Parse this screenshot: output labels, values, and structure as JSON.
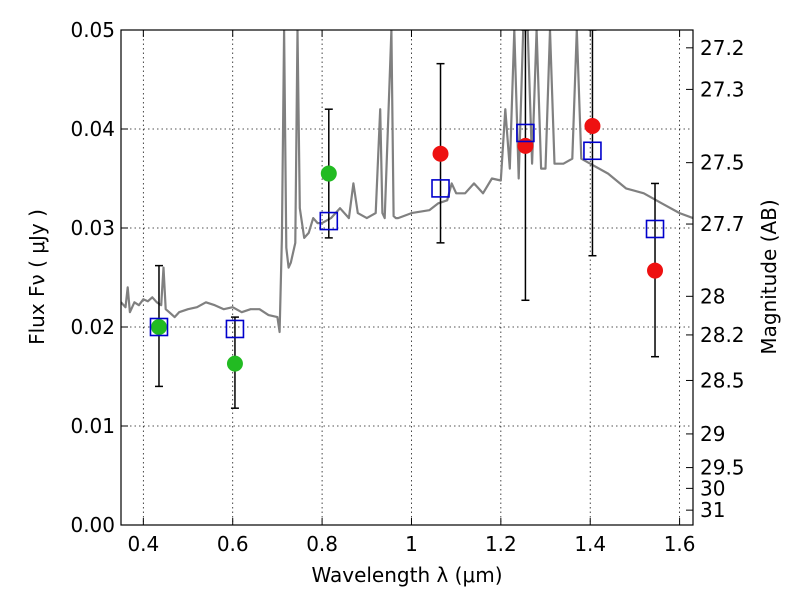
{
  "chart_data": {
    "type": "scatter",
    "title": "",
    "xlabel": "Wavelength  λ (μm)",
    "ylabel": "Flux  Fν  ( μJy )",
    "ylabel_right": "Magnitude (AB)",
    "xlim": [
      0.35,
      1.63
    ],
    "ylim": [
      0.0,
      0.05
    ],
    "grid": true,
    "x_ticks": [
      0.4,
      0.6,
      0.8,
      1.0,
      1.2,
      1.4,
      1.6
    ],
    "x_tick_labels": [
      "0.4",
      "0.6",
      "0.8",
      "1",
      "1.2",
      "1.4",
      "1.6"
    ],
    "y_ticks": [
      0.0,
      0.01,
      0.02,
      0.03,
      0.04,
      0.05
    ],
    "y_tick_labels": [
      "0.00",
      "0.01",
      "0.02",
      "0.03",
      "0.04",
      "0.05"
    ],
    "right_ticks": [
      {
        "label": "27.2",
        "flux": 0.0482
      },
      {
        "label": "27.3",
        "flux": 0.044
      },
      {
        "label": "27.5",
        "flux": 0.0366
      },
      {
        "label": "27.7",
        "flux": 0.0304
      },
      {
        "label": "28",
        "flux": 0.0231
      },
      {
        "label": "28.2",
        "flux": 0.0192
      },
      {
        "label": "28.5",
        "flux": 0.0146
      },
      {
        "label": "29",
        "flux": 0.0092
      },
      {
        "label": "29.5",
        "flux": 0.0058
      },
      {
        "label": "30",
        "flux": 0.0037
      },
      {
        "label": "31",
        "flux": 0.0015
      }
    ],
    "series": [
      {
        "kind": "line",
        "color": "#808080",
        "x": [
          0.35,
          0.36,
          0.365,
          0.37,
          0.38,
          0.39,
          0.4,
          0.41,
          0.42,
          0.43,
          0.44,
          0.445,
          0.45,
          0.46,
          0.47,
          0.48,
          0.5,
          0.52,
          0.54,
          0.56,
          0.58,
          0.6,
          0.62,
          0.64,
          0.66,
          0.68,
          0.7,
          0.705,
          0.71,
          0.715,
          0.72,
          0.725,
          0.73,
          0.74,
          0.745,
          0.75,
          0.76,
          0.77,
          0.78,
          0.79,
          0.8,
          0.82,
          0.84,
          0.86,
          0.87,
          0.88,
          0.9,
          0.92,
          0.93,
          0.935,
          0.94,
          0.955,
          0.96,
          0.965,
          0.97,
          1.0,
          1.04,
          1.06,
          1.08,
          1.09,
          1.1,
          1.12,
          1.14,
          1.16,
          1.18,
          1.2,
          1.21,
          1.22,
          1.23,
          1.24,
          1.25,
          1.26,
          1.27,
          1.28,
          1.29,
          1.3,
          1.31,
          1.32,
          1.34,
          1.36,
          1.37,
          1.38,
          1.4,
          1.44,
          1.48,
          1.52,
          1.56,
          1.6,
          1.63
        ],
        "y": [
          0.0225,
          0.022,
          0.024,
          0.0215,
          0.0225,
          0.0222,
          0.0228,
          0.0226,
          0.023,
          0.0225,
          0.0222,
          0.026,
          0.0218,
          0.0214,
          0.021,
          0.0215,
          0.0218,
          0.022,
          0.0225,
          0.0222,
          0.0218,
          0.022,
          0.0215,
          0.0218,
          0.0218,
          0.0212,
          0.021,
          0.0195,
          0.029,
          0.05,
          0.028,
          0.026,
          0.0265,
          0.0285,
          0.05,
          0.032,
          0.029,
          0.0295,
          0.031,
          0.0305,
          0.0305,
          0.031,
          0.032,
          0.031,
          0.0345,
          0.0315,
          0.031,
          0.0315,
          0.042,
          0.0315,
          0.031,
          0.05,
          0.0312,
          0.031,
          0.031,
          0.0315,
          0.0318,
          0.0325,
          0.0328,
          0.0345,
          0.0335,
          0.0335,
          0.0345,
          0.0335,
          0.035,
          0.0348,
          0.042,
          0.036,
          0.05,
          0.035,
          0.05,
          0.05,
          0.0365,
          0.05,
          0.036,
          0.036,
          0.05,
          0.0365,
          0.0365,
          0.037,
          0.05,
          0.037,
          0.0365,
          0.0355,
          0.034,
          0.0335,
          0.0325,
          0.0315,
          0.031
        ]
      },
      {
        "kind": "errorbar",
        "color": "#000000",
        "points": [
          {
            "x": 0.435,
            "lo": 0.014,
            "hi": 0.0262
          },
          {
            "x": 0.605,
            "lo": 0.0118,
            "hi": 0.021
          },
          {
            "x": 0.815,
            "lo": 0.029,
            "hi": 0.042
          },
          {
            "x": 1.065,
            "lo": 0.0285,
            "hi": 0.0466
          },
          {
            "x": 1.255,
            "lo": 0.0227,
            "hi": 0.05
          },
          {
            "x": 1.405,
            "lo": 0.0272,
            "hi": 0.05
          },
          {
            "x": 1.545,
            "lo": 0.017,
            "hi": 0.0345
          }
        ]
      },
      {
        "kind": "markers",
        "marker": "circle",
        "color": "#22bb22",
        "x": [
          0.435,
          0.605,
          0.815
        ],
        "y": [
          0.02,
          0.0163,
          0.0355
        ]
      },
      {
        "kind": "markers",
        "marker": "circle",
        "color": "#ee1111",
        "x": [
          1.065,
          1.255,
          1.405,
          1.545
        ],
        "y": [
          0.0375,
          0.0383,
          0.0403,
          0.0257
        ]
      },
      {
        "kind": "markers",
        "marker": "square",
        "color": "#0000cc",
        "x": [
          0.435,
          0.605,
          0.815,
          1.065,
          1.255,
          1.405,
          1.545
        ],
        "y": [
          0.02,
          0.0198,
          0.0307,
          0.034,
          0.0396,
          0.0378,
          0.0299
        ]
      }
    ]
  }
}
